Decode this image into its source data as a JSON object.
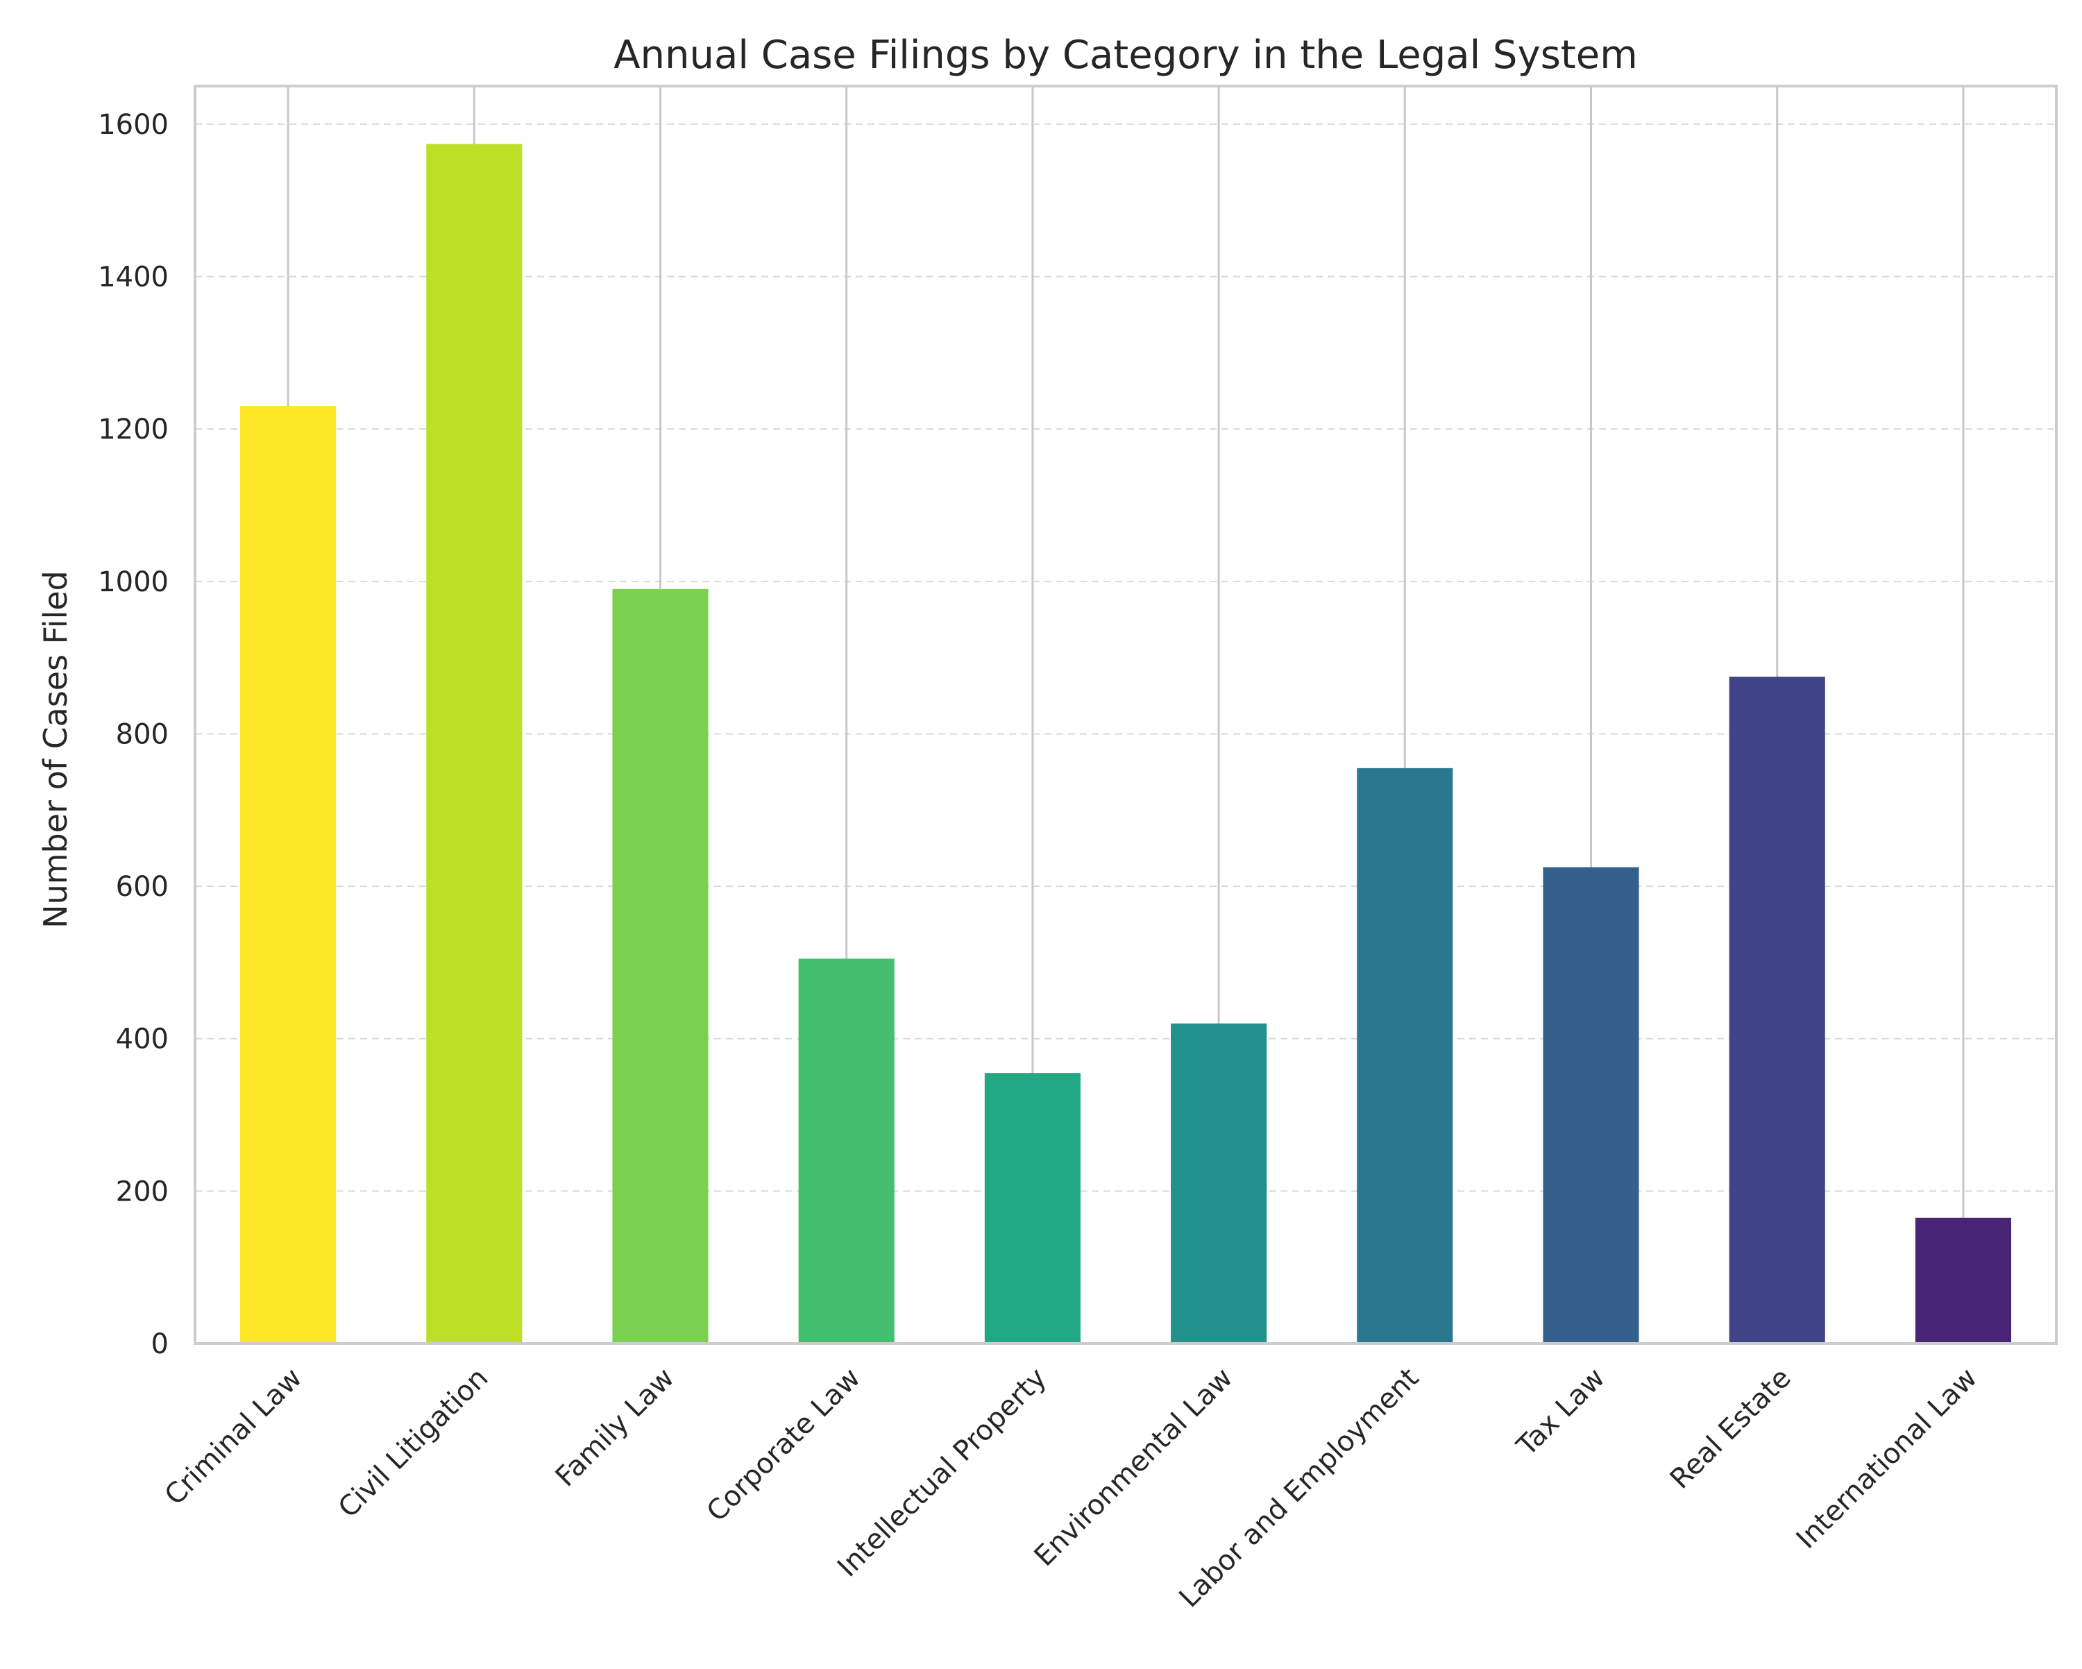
{
  "chart_data": {
    "type": "bar",
    "title": "Annual Case Filings by Category in the Legal System",
    "xlabel": "",
    "ylabel": "Number of Cases Filed",
    "categories": [
      "Criminal Law",
      "Civil Litigation",
      "Family Law",
      "Corporate Law",
      "Intellectual Property",
      "Environmental Law",
      "Labor and Employment",
      "Tax Law",
      "Real Estate",
      "International Law"
    ],
    "values": [
      1230,
      1574,
      990,
      505,
      355,
      420,
      755,
      625,
      875,
      165
    ],
    "colors": [
      "#fde725",
      "#bddf26",
      "#7ad151",
      "#44bf70",
      "#22a884",
      "#21918c",
      "#2a788e",
      "#355f8d",
      "#414487",
      "#482475"
    ],
    "ylim": [
      0,
      1650
    ],
    "yticks": [
      0,
      200,
      400,
      600,
      800,
      1000,
      1200,
      1400,
      1600
    ],
    "grid": true,
    "legend": "none"
  }
}
